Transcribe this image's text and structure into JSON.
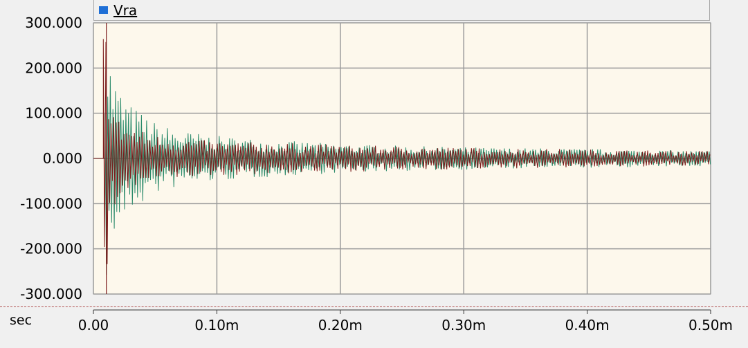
{
  "legend": {
    "label": "Vra",
    "swatch_color": "#1f6fd6"
  },
  "x_unit_label": "sec",
  "chart_data": {
    "type": "line",
    "title": "",
    "xlabel": "sec",
    "ylabel": "",
    "xlim": [
      0,
      0.0005
    ],
    "ylim": [
      -300,
      300
    ],
    "grid": true,
    "background": "#fdf8ec",
    "y_ticks": [
      300,
      200,
      100,
      0,
      -100,
      -200,
      -300
    ],
    "y_tick_labels": [
      "300.000",
      "200.000",
      "100.000",
      "0.000",
      "-100.000",
      "-200.000",
      "-300.000"
    ],
    "x_ticks": [
      0,
      0.0001,
      0.0002,
      0.0003,
      0.0004,
      0.0005
    ],
    "x_tick_labels": [
      "0.00",
      "0.10m",
      "0.20m",
      "0.30m",
      "0.40m",
      "0.50m"
    ],
    "series": [
      {
        "name": "Vra",
        "color": "#7a1a1a",
        "x": [
          1e-05,
          1.5e-05,
          2e-05,
          3e-05,
          4e-05,
          5e-05,
          7e-05,
          0.0001,
          0.00015,
          0.0002,
          0.00025,
          0.0003,
          0.00035,
          0.0004,
          0.00045,
          0.0005
        ],
        "envelope": [
          300,
          140,
          90,
          75,
          60,
          52,
          45,
          38,
          35,
          30,
          27,
          24,
          22,
          20,
          18,
          17
        ]
      },
      {
        "color": "#2a8a6a",
        "x": [
          1e-05,
          1.5e-05,
          2e-05,
          3e-05,
          4e-05,
          5e-05,
          7e-05,
          0.0001,
          0.00015,
          0.0002,
          0.00025,
          0.0003,
          0.00035,
          0.0004,
          0.00045,
          0.0005
        ],
        "envelope": [
          280,
          200,
          160,
          120,
          100,
          80,
          62,
          50,
          40,
          32,
          28,
          25,
          23,
          21,
          19,
          17
        ]
      }
    ]
  }
}
